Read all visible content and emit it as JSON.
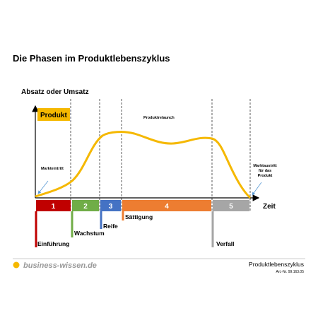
{
  "header": {
    "title": "Die Phasen im Produktlebenszyklus"
  },
  "diagram": {
    "y_axis_label": "Absatz oder Umsatz",
    "x_axis_label": "Zeit",
    "curve_label": "Produkt",
    "annotations": [
      "Markteintritt",
      "Produktrelaunch",
      [
        "Marktaustritt",
        "für das",
        "Produkt"
      ]
    ],
    "phases": [
      {
        "number": "1",
        "name": "Einführung",
        "color": "#c00000"
      },
      {
        "number": "2",
        "name": "Wachstum",
        "color": "#70ad47"
      },
      {
        "number": "3",
        "name": "Reife",
        "color": "#4472c4"
      },
      {
        "number": "4",
        "name": "Sättigung",
        "color": "#ed7d31"
      },
      {
        "number": "5",
        "name": "Verfall",
        "color": "#a6a6a6"
      }
    ]
  },
  "footer": {
    "brand": "business-wissen.de",
    "topic": "Produktlebenszyklus",
    "article": "Art.-Nr. 99.163.05"
  }
}
